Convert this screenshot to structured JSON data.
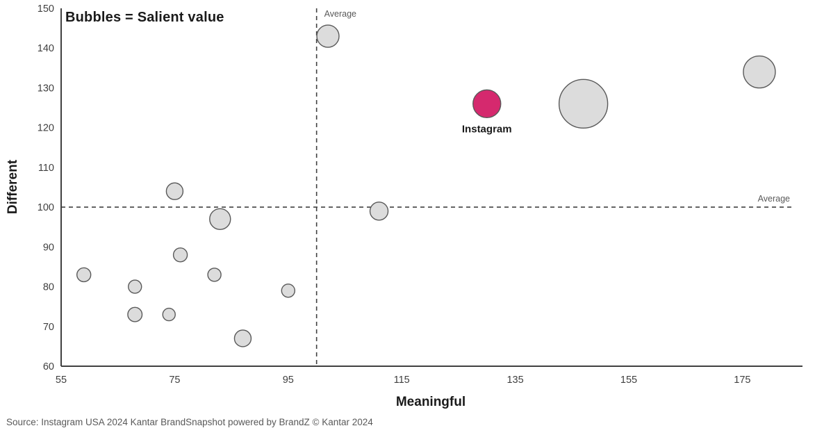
{
  "title": "Bubbles = Salient value",
  "source": "Source: Instagram USA 2024 Kantar BrandSnapshot powered by BrandZ © Kantar 2024",
  "colors": {
    "highlight_pink": "#d5296e",
    "bubble_fill": "#dcdcdc",
    "bubble_stroke": "#595959",
    "axis": "#404040",
    "tick_text": "#404040",
    "muted_text": "#595959",
    "dark_text": "#1a1a1a"
  },
  "chart_data": {
    "type": "scatter",
    "subtype": "bubble",
    "title": "Bubbles = Salient value",
    "xlabel": "Meaningful",
    "ylabel": "Different",
    "xlim": [
      55,
      185.6
    ],
    "ylim": [
      60,
      150
    ],
    "x_ticks": [
      55,
      75,
      95,
      115,
      135,
      155,
      175
    ],
    "y_ticks": [
      60,
      70,
      80,
      90,
      100,
      110,
      120,
      130,
      140,
      150
    ],
    "grid": false,
    "average_lines": {
      "x_value": 100,
      "y_value": 100,
      "label": "Average"
    },
    "size_semantics": "bubble size = Salient value",
    "bubbles": [
      {
        "x": 59,
        "y": 83,
        "r": 10,
        "highlight": false
      },
      {
        "x": 68,
        "y": 80,
        "r": 9.5,
        "highlight": false
      },
      {
        "x": 68,
        "y": 73,
        "r": 10.3,
        "highlight": false
      },
      {
        "x": 74,
        "y": 73,
        "r": 9,
        "highlight": false
      },
      {
        "x": 75,
        "y": 104,
        "r": 12,
        "highlight": false
      },
      {
        "x": 76,
        "y": 88,
        "r": 10,
        "highlight": false
      },
      {
        "x": 82,
        "y": 83,
        "r": 9.5,
        "highlight": false
      },
      {
        "x": 83,
        "y": 97,
        "r": 15,
        "highlight": false
      },
      {
        "x": 87,
        "y": 67,
        "r": 12,
        "highlight": false
      },
      {
        "x": 95,
        "y": 79,
        "r": 9.5,
        "highlight": false
      },
      {
        "x": 102,
        "y": 143,
        "r": 16,
        "highlight": false
      },
      {
        "x": 111,
        "y": 99,
        "r": 13,
        "highlight": false
      },
      {
        "x": 130,
        "y": 126,
        "r": 20,
        "highlight": true,
        "label": "Instagram"
      },
      {
        "x": 147,
        "y": 126,
        "r": 35,
        "highlight": false
      },
      {
        "x": 178,
        "y": 134,
        "r": 23,
        "highlight": false
      }
    ]
  }
}
